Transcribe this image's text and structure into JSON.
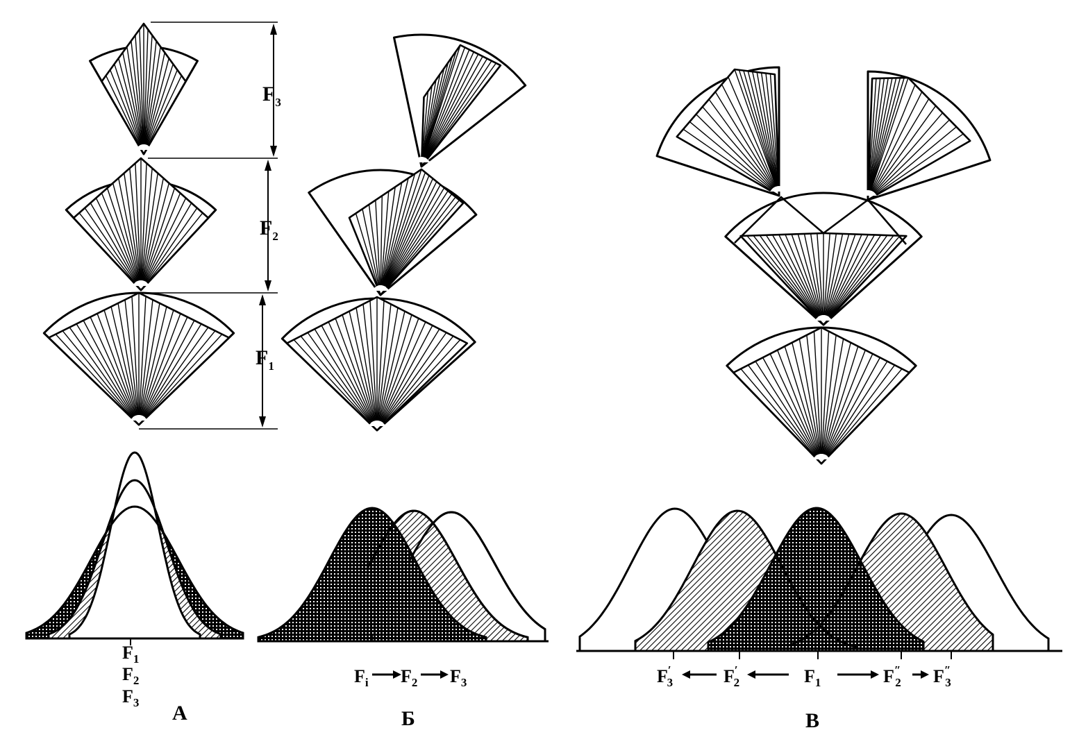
{
  "colors": {
    "ink": "#000000",
    "paper": "#ffffff"
  },
  "panels": [
    {
      "id": "A",
      "letter": "A"
    },
    {
      "id": "B",
      "letter": "Б"
    },
    {
      "id": "C",
      "letter": "В"
    }
  ],
  "dimension_labels": {
    "F3": {
      "base": "F",
      "sub": "3"
    },
    "F2": {
      "base": "F",
      "sub": "2"
    },
    "F1": {
      "base": "F",
      "sub": "1"
    }
  },
  "panel_a_axis": [
    {
      "base": "F",
      "sub": "1"
    },
    {
      "base": "F",
      "sub": "2"
    },
    {
      "base": "F",
      "sub": "3"
    }
  ],
  "panel_b_axis": {
    "f1": {
      "base": "F",
      "sub": "i"
    },
    "f2": {
      "base": "F",
      "sub": "2"
    },
    "f3": {
      "base": "F",
      "sub": "3"
    }
  },
  "panel_c_axis": {
    "f3p": {
      "base": "F",
      "sub": "3",
      "prime": "′"
    },
    "f2p": {
      "base": "F",
      "sub": "2",
      "prime": "′"
    },
    "f1": {
      "base": "F",
      "sub": "1"
    },
    "f2pp": {
      "base": "F",
      "sub": "2",
      "prime": "″"
    },
    "f3pp": {
      "base": "F",
      "sub": "3",
      "prime": "″"
    }
  }
}
